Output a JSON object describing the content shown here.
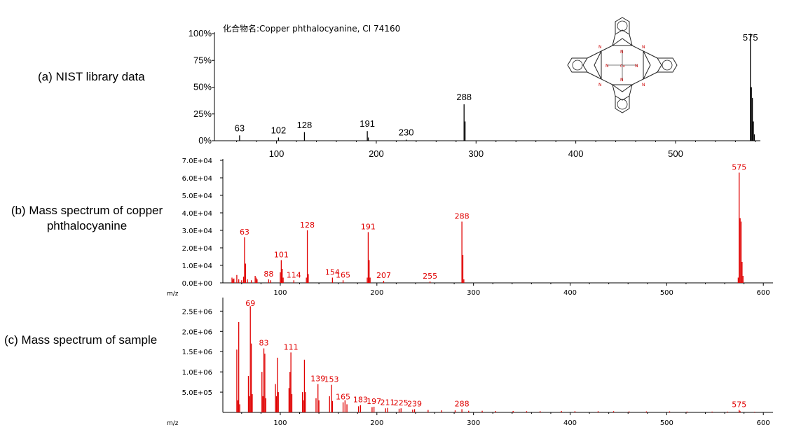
{
  "captions": {
    "a": "(a) NIST library data",
    "b": "(b) Mass spectrum of copper\nphthalocyanine",
    "c": "(c) Mass spectrum of sample"
  },
  "colors": {
    "nist": "#000000",
    "measured": "#e00000"
  },
  "chart_data": [
    {
      "type": "bar",
      "id": "nist",
      "title": "化合物名:Copper phthalocyanine, CI 74160",
      "xlim": [
        42,
        585
      ],
      "ylim": [
        0,
        100
      ],
      "yticks": [
        0,
        25,
        50,
        75,
        100
      ],
      "ytick_labels": [
        "0%",
        "25%",
        "50%",
        "75%",
        "100%"
      ],
      "xticks": [
        100,
        200,
        300,
        400,
        500
      ],
      "peaks": [
        {
          "mz": 63,
          "value": 5
        },
        {
          "mz": 102,
          "value": 3
        },
        {
          "mz": 128,
          "value": 8
        },
        {
          "mz": 191,
          "value": 9
        },
        {
          "mz": 192,
          "value": 3
        },
        {
          "mz": 230,
          "value": 1
        },
        {
          "mz": 288,
          "value": 34
        },
        {
          "mz": 289,
          "value": 18
        },
        {
          "mz": 575,
          "value": 100
        },
        {
          "mz": 576,
          "value": 50
        },
        {
          "mz": 577,
          "value": 40
        },
        {
          "mz": 578,
          "value": 18
        },
        {
          "mz": 579,
          "value": 6
        }
      ],
      "labels": [
        {
          "mz": 63,
          "text": "63"
        },
        {
          "mz": 102,
          "text": "102"
        },
        {
          "mz": 128,
          "text": "128"
        },
        {
          "mz": 191,
          "text": "191"
        },
        {
          "mz": 230,
          "text": "230"
        },
        {
          "mz": 288,
          "text": "288"
        },
        {
          "mz": 575,
          "text": "575"
        }
      ],
      "structure_icon": "copper-phthalocyanine-structure"
    },
    {
      "type": "bar",
      "id": "cupc",
      "xlabel": "m/z",
      "xlim": [
        42,
        610
      ],
      "ylim": [
        0,
        70000
      ],
      "yticks": [
        0,
        10000,
        20000,
        30000,
        40000,
        50000,
        60000,
        70000
      ],
      "ytick_labels": [
        "0.0E+00",
        "1.0E+04",
        "2.0E+04",
        "3.0E+04",
        "4.0E+04",
        "5.0E+04",
        "6.0E+04",
        "7.0E+04"
      ],
      "xticks": [
        100,
        200,
        300,
        400,
        500,
        600
      ],
      "peaks": [
        {
          "mz": 50,
          "value": 3000
        },
        {
          "mz": 51,
          "value": 2000
        },
        {
          "mz": 52,
          "value": 2500
        },
        {
          "mz": 55,
          "value": 4500
        },
        {
          "mz": 57,
          "value": 2000
        },
        {
          "mz": 60,
          "value": 1500
        },
        {
          "mz": 62,
          "value": 3500
        },
        {
          "mz": 63,
          "value": 26000
        },
        {
          "mz": 64,
          "value": 11000
        },
        {
          "mz": 66,
          "value": 2000
        },
        {
          "mz": 70,
          "value": 1500
        },
        {
          "mz": 74,
          "value": 4000
        },
        {
          "mz": 75,
          "value": 3000
        },
        {
          "mz": 76,
          "value": 2000
        },
        {
          "mz": 88,
          "value": 2000
        },
        {
          "mz": 90,
          "value": 1500
        },
        {
          "mz": 100,
          "value": 6000
        },
        {
          "mz": 101,
          "value": 13000
        },
        {
          "mz": 102,
          "value": 8000
        },
        {
          "mz": 103,
          "value": 3000
        },
        {
          "mz": 114,
          "value": 1500
        },
        {
          "mz": 127,
          "value": 3000
        },
        {
          "mz": 128,
          "value": 30000
        },
        {
          "mz": 129,
          "value": 5000
        },
        {
          "mz": 154,
          "value": 3000
        },
        {
          "mz": 165,
          "value": 1500
        },
        {
          "mz": 190,
          "value": 3000
        },
        {
          "mz": 191,
          "value": 29000
        },
        {
          "mz": 192,
          "value": 13000
        },
        {
          "mz": 193,
          "value": 3000
        },
        {
          "mz": 207,
          "value": 1200
        },
        {
          "mz": 255,
          "value": 800
        },
        {
          "mz": 288,
          "value": 35000
        },
        {
          "mz": 289,
          "value": 16000
        },
        {
          "mz": 290,
          "value": 2000
        },
        {
          "mz": 574,
          "value": 3000
        },
        {
          "mz": 575,
          "value": 63000
        },
        {
          "mz": 576,
          "value": 37000
        },
        {
          "mz": 577,
          "value": 35000
        },
        {
          "mz": 578,
          "value": 12000
        },
        {
          "mz": 579,
          "value": 4000
        }
      ],
      "labels": [
        {
          "mz": 63,
          "text": "63"
        },
        {
          "mz": 88,
          "text": "88"
        },
        {
          "mz": 101,
          "text": "101"
        },
        {
          "mz": 114,
          "text": "114"
        },
        {
          "mz": 128,
          "text": "128"
        },
        {
          "mz": 154,
          "text": "154"
        },
        {
          "mz": 165,
          "text": "165"
        },
        {
          "mz": 191,
          "text": "191"
        },
        {
          "mz": 207,
          "text": "207"
        },
        {
          "mz": 255,
          "text": "255"
        },
        {
          "mz": 288,
          "text": "288"
        },
        {
          "mz": 575,
          "text": "575"
        }
      ]
    },
    {
      "type": "bar",
      "id": "sample",
      "xlabel": "m/z",
      "xlim": [
        42,
        610
      ],
      "ylim": [
        0,
        2800000
      ],
      "yticks": [
        500000,
        1000000,
        1500000,
        2000000,
        2500000
      ],
      "ytick_labels": [
        "5.0E+05",
        "1.0E+06",
        "1.5E+06",
        "2.0E+06",
        "2.5E+06"
      ],
      "xticks": [
        100,
        200,
        300,
        400,
        500,
        600
      ],
      "peaks": [
        {
          "mz": 55,
          "value": 1550000
        },
        {
          "mz": 56,
          "value": 300000
        },
        {
          "mz": 57,
          "value": 2230000
        },
        {
          "mz": 58,
          "value": 200000
        },
        {
          "mz": 67,
          "value": 900000
        },
        {
          "mz": 68,
          "value": 400000
        },
        {
          "mz": 69,
          "value": 2620000
        },
        {
          "mz": 70,
          "value": 1700000
        },
        {
          "mz": 71,
          "value": 450000
        },
        {
          "mz": 81,
          "value": 1000000
        },
        {
          "mz": 82,
          "value": 400000
        },
        {
          "mz": 83,
          "value": 1580000
        },
        {
          "mz": 84,
          "value": 1450000
        },
        {
          "mz": 85,
          "value": 350000
        },
        {
          "mz": 95,
          "value": 700000
        },
        {
          "mz": 96,
          "value": 400000
        },
        {
          "mz": 97,
          "value": 1350000
        },
        {
          "mz": 98,
          "value": 500000
        },
        {
          "mz": 109,
          "value": 600000
        },
        {
          "mz": 110,
          "value": 1000000
        },
        {
          "mz": 111,
          "value": 1480000
        },
        {
          "mz": 112,
          "value": 450000
        },
        {
          "mz": 123,
          "value": 500000
        },
        {
          "mz": 124,
          "value": 300000
        },
        {
          "mz": 125,
          "value": 1300000
        },
        {
          "mz": 126,
          "value": 500000
        },
        {
          "mz": 137,
          "value": 350000
        },
        {
          "mz": 139,
          "value": 700000
        },
        {
          "mz": 140,
          "value": 300000
        },
        {
          "mz": 151,
          "value": 400000
        },
        {
          "mz": 153,
          "value": 680000
        },
        {
          "mz": 154,
          "value": 280000
        },
        {
          "mz": 165,
          "value": 250000
        },
        {
          "mz": 167,
          "value": 300000
        },
        {
          "mz": 169,
          "value": 200000
        },
        {
          "mz": 181,
          "value": 150000
        },
        {
          "mz": 183,
          "value": 180000
        },
        {
          "mz": 195,
          "value": 130000
        },
        {
          "mz": 197,
          "value": 140000
        },
        {
          "mz": 209,
          "value": 100000
        },
        {
          "mz": 211,
          "value": 110000
        },
        {
          "mz": 223,
          "value": 90000
        },
        {
          "mz": 225,
          "value": 100000
        },
        {
          "mz": 237,
          "value": 70000
        },
        {
          "mz": 239,
          "value": 80000
        },
        {
          "mz": 253,
          "value": 60000
        },
        {
          "mz": 267,
          "value": 50000
        },
        {
          "mz": 281,
          "value": 50000
        },
        {
          "mz": 288,
          "value": 80000
        },
        {
          "mz": 295,
          "value": 40000
        },
        {
          "mz": 309,
          "value": 40000
        },
        {
          "mz": 323,
          "value": 35000
        },
        {
          "mz": 341,
          "value": 35000
        },
        {
          "mz": 355,
          "value": 30000
        },
        {
          "mz": 369,
          "value": 30000
        },
        {
          "mz": 391,
          "value": 35000
        },
        {
          "mz": 405,
          "value": 30000
        },
        {
          "mz": 429,
          "value": 30000
        },
        {
          "mz": 445,
          "value": 30000
        },
        {
          "mz": 461,
          "value": 25000
        },
        {
          "mz": 479,
          "value": 25000
        },
        {
          "mz": 503,
          "value": 25000
        },
        {
          "mz": 521,
          "value": 20000
        },
        {
          "mz": 547,
          "value": 20000
        },
        {
          "mz": 563,
          "value": 20000
        },
        {
          "mz": 575,
          "value": 60000
        },
        {
          "mz": 576,
          "value": 30000
        },
        {
          "mz": 591,
          "value": 15000
        }
      ],
      "labels": [
        {
          "mz": 69,
          "text": "69"
        },
        {
          "mz": 83,
          "text": "83"
        },
        {
          "mz": 111,
          "text": "111"
        },
        {
          "mz": 139,
          "text": "139"
        },
        {
          "mz": 153,
          "text": "153"
        },
        {
          "mz": 165,
          "text": "165"
        },
        {
          "mz": 183,
          "text": "183"
        },
        {
          "mz": 197,
          "text": "197"
        },
        {
          "mz": 211,
          "text": "211"
        },
        {
          "mz": 225,
          "text": "225"
        },
        {
          "mz": 239,
          "text": "239"
        },
        {
          "mz": 288,
          "text": "288"
        },
        {
          "mz": 575,
          "text": "575"
        }
      ]
    }
  ]
}
